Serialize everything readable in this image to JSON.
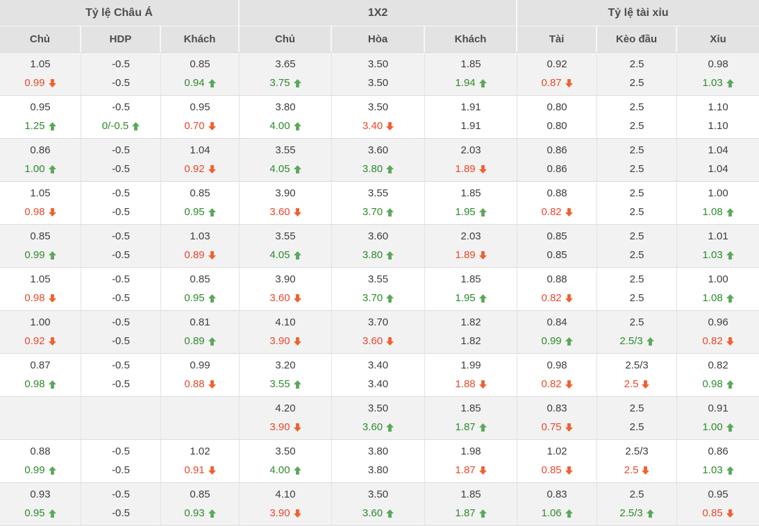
{
  "table": {
    "groups": [
      {
        "label": "Tỷ lệ Châu Á",
        "cols": [
          "Chủ",
          "HDP",
          "Khách"
        ]
      },
      {
        "label": "1X2",
        "cols": [
          "Chủ",
          "Hòa",
          "Khách"
        ]
      },
      {
        "label": "Tỷ lệ tài xỉu",
        "cols": [
          "Tài",
          "Kèo đầu",
          "Xỉu"
        ]
      }
    ],
    "rows": [
      [
        [
          "1.05",
          "0.99",
          "down"
        ],
        [
          "-0.5",
          "-0.5",
          ""
        ],
        [
          "0.85",
          "0.94",
          "up"
        ],
        [
          "3.65",
          "3.75",
          "up"
        ],
        [
          "3.50",
          "3.50",
          ""
        ],
        [
          "1.85",
          "1.94",
          "up"
        ],
        [
          "0.92",
          "0.87",
          "down"
        ],
        [
          "2.5",
          "2.5",
          ""
        ],
        [
          "0.98",
          "1.03",
          "up"
        ]
      ],
      [
        [
          "0.95",
          "1.25",
          "up"
        ],
        [
          "-0.5",
          "0/-0.5",
          "up"
        ],
        [
          "0.95",
          "0.70",
          "down"
        ],
        [
          "3.80",
          "4.00",
          "up"
        ],
        [
          "3.50",
          "3.40",
          "down"
        ],
        [
          "1.91",
          "1.91",
          ""
        ],
        [
          "0.80",
          "0.80",
          ""
        ],
        [
          "2.5",
          "2.5",
          ""
        ],
        [
          "1.10",
          "1.10",
          ""
        ]
      ],
      [
        [
          "0.86",
          "1.00",
          "up"
        ],
        [
          "-0.5",
          "-0.5",
          ""
        ],
        [
          "1.04",
          "0.92",
          "down"
        ],
        [
          "3.55",
          "4.05",
          "up"
        ],
        [
          "3.60",
          "3.80",
          "up"
        ],
        [
          "2.03",
          "1.89",
          "down"
        ],
        [
          "0.86",
          "0.86",
          ""
        ],
        [
          "2.5",
          "2.5",
          ""
        ],
        [
          "1.04",
          "1.04",
          ""
        ]
      ],
      [
        [
          "1.05",
          "0.98",
          "down"
        ],
        [
          "-0.5",
          "-0.5",
          ""
        ],
        [
          "0.85",
          "0.95",
          "up"
        ],
        [
          "3.90",
          "3.60",
          "down"
        ],
        [
          "3.55",
          "3.70",
          "up"
        ],
        [
          "1.85",
          "1.95",
          "up"
        ],
        [
          "0.88",
          "0.82",
          "down"
        ],
        [
          "2.5",
          "2.5",
          ""
        ],
        [
          "1.00",
          "1.08",
          "up"
        ]
      ],
      [
        [
          "0.85",
          "0.99",
          "up"
        ],
        [
          "-0.5",
          "-0.5",
          ""
        ],
        [
          "1.03",
          "0.89",
          "down"
        ],
        [
          "3.55",
          "4.05",
          "up"
        ],
        [
          "3.60",
          "3.80",
          "up"
        ],
        [
          "2.03",
          "1.89",
          "down"
        ],
        [
          "0.85",
          "0.85",
          ""
        ],
        [
          "2.5",
          "2.5",
          ""
        ],
        [
          "1.01",
          "1.03",
          "up"
        ]
      ],
      [
        [
          "1.05",
          "0.98",
          "down"
        ],
        [
          "-0.5",
          "-0.5",
          ""
        ],
        [
          "0.85",
          "0.95",
          "up"
        ],
        [
          "3.90",
          "3.60",
          "down"
        ],
        [
          "3.55",
          "3.70",
          "up"
        ],
        [
          "1.85",
          "1.95",
          "up"
        ],
        [
          "0.88",
          "0.82",
          "down"
        ],
        [
          "2.5",
          "2.5",
          ""
        ],
        [
          "1.00",
          "1.08",
          "up"
        ]
      ],
      [
        [
          "1.00",
          "0.92",
          "down"
        ],
        [
          "-0.5",
          "-0.5",
          ""
        ],
        [
          "0.81",
          "0.89",
          "up"
        ],
        [
          "4.10",
          "3.90",
          "down"
        ],
        [
          "3.70",
          "3.60",
          "down"
        ],
        [
          "1.82",
          "1.82",
          ""
        ],
        [
          "0.84",
          "0.99",
          "up"
        ],
        [
          "2.5",
          "2.5/3",
          "up"
        ],
        [
          "0.96",
          "0.82",
          "down"
        ]
      ],
      [
        [
          "0.87",
          "0.98",
          "up"
        ],
        [
          "-0.5",
          "-0.5",
          ""
        ],
        [
          "0.99",
          "0.88",
          "down"
        ],
        [
          "3.20",
          "3.55",
          "up"
        ],
        [
          "3.40",
          "3.40",
          ""
        ],
        [
          "1.99",
          "1.88",
          "down"
        ],
        [
          "0.98",
          "0.82",
          "down"
        ],
        [
          "2.5/3",
          "2.5",
          "down"
        ],
        [
          "0.82",
          "0.98",
          "up"
        ]
      ],
      [
        [
          "",
          "",
          ""
        ],
        [
          "",
          "",
          ""
        ],
        [
          "",
          "",
          ""
        ],
        [
          "4.20",
          "3.90",
          "down"
        ],
        [
          "3.50",
          "3.60",
          "up"
        ],
        [
          "1.85",
          "1.87",
          "up"
        ],
        [
          "0.83",
          "0.75",
          "down"
        ],
        [
          "2.5",
          "2.5",
          ""
        ],
        [
          "0.91",
          "1.00",
          "up"
        ]
      ],
      [
        [
          "0.88",
          "0.99",
          "up"
        ],
        [
          "-0.5",
          "-0.5",
          ""
        ],
        [
          "1.02",
          "0.91",
          "down"
        ],
        [
          "3.50",
          "4.00",
          "up"
        ],
        [
          "3.80",
          "3.80",
          ""
        ],
        [
          "1.98",
          "1.87",
          "down"
        ],
        [
          "1.02",
          "0.85",
          "down"
        ],
        [
          "2.5/3",
          "2.5",
          "down"
        ],
        [
          "0.86",
          "1.03",
          "up"
        ]
      ],
      [
        [
          "0.93",
          "0.95",
          "up"
        ],
        [
          "-0.5",
          "-0.5",
          ""
        ],
        [
          "0.85",
          "0.93",
          "up"
        ],
        [
          "4.10",
          "3.90",
          "down"
        ],
        [
          "3.50",
          "3.60",
          "up"
        ],
        [
          "1.85",
          "1.87",
          "up"
        ],
        [
          "0.83",
          "1.06",
          "up"
        ],
        [
          "2.5",
          "2.5/3",
          "up"
        ],
        [
          "0.95",
          "0.85",
          "down"
        ]
      ]
    ]
  },
  "colors": {
    "up_text": "#2c8a2c",
    "down_text": "#e8472b",
    "up_arrow": "#5aa85a",
    "down_arrow": "#f0602f",
    "header_bg": "#e3e3e3",
    "row_alt_bg": "#f2f2f2"
  }
}
